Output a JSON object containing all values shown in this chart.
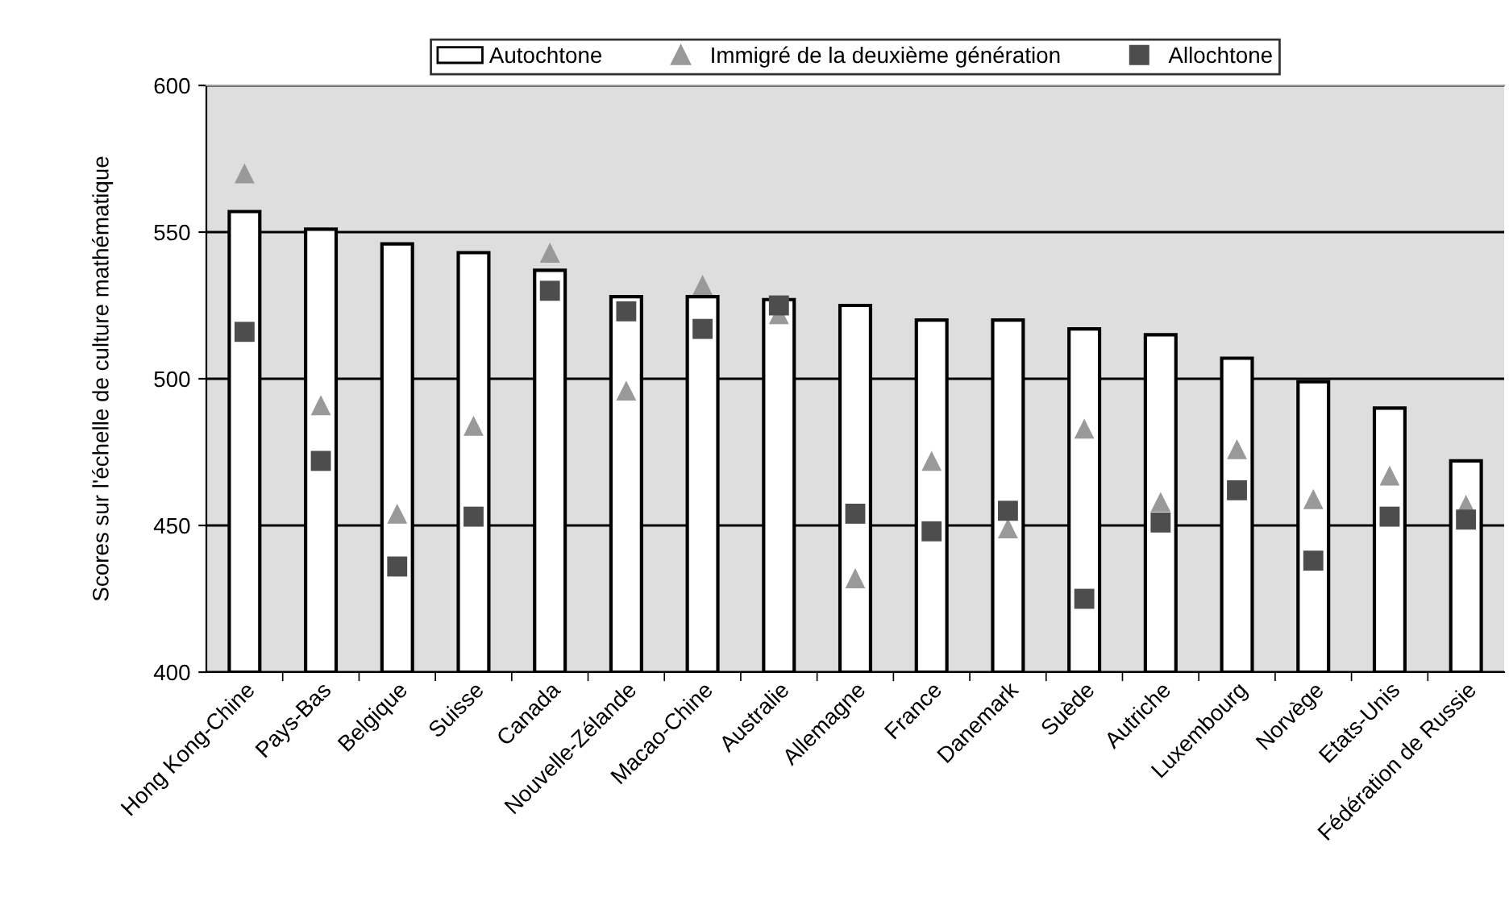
{
  "chart_data": {
    "type": "bar",
    "ylabel": "Scores sur l'échelle de culture mathématique",
    "categories": [
      "Hong Kong-Chine",
      "Pays-Bas",
      "Belgique",
      "Suisse",
      "Canada",
      "Nouvelle-Zélande",
      "Macao-Chine",
      "Australie",
      "Allemagne",
      "France",
      "Danemark",
      "Suède",
      "Autriche",
      "Luxembourg",
      "Norvège",
      "Etats-Unis",
      "Fédération de Russie"
    ],
    "series": [
      {
        "name": "Autochtone",
        "color": "#ffffff",
        "values": [
          557,
          551,
          546,
          543,
          537,
          528,
          528,
          527,
          525,
          520,
          520,
          517,
          515,
          507,
          499,
          490,
          472
        ]
      },
      {
        "name": "Immigré de la deuxième génération",
        "type": "scatter",
        "marker": "triangle",
        "color": "#999999",
        "values": [
          570,
          491,
          454,
          484,
          543,
          496,
          532,
          522,
          432,
          472,
          449,
          483,
          458,
          476,
          459,
          467,
          457
        ]
      },
      {
        "name": "Allochtone",
        "type": "scatter",
        "marker": "square",
        "color": "#4d4d4d",
        "values": [
          516,
          472,
          436,
          453,
          530,
          523,
          517,
          525,
          454,
          448,
          455,
          425,
          451,
          462,
          438,
          453,
          452
        ]
      }
    ],
    "ylim": [
      400,
      600
    ],
    "yticks": [
      400,
      450,
      500,
      550,
      600
    ],
    "grid": "y",
    "legend": "top"
  }
}
